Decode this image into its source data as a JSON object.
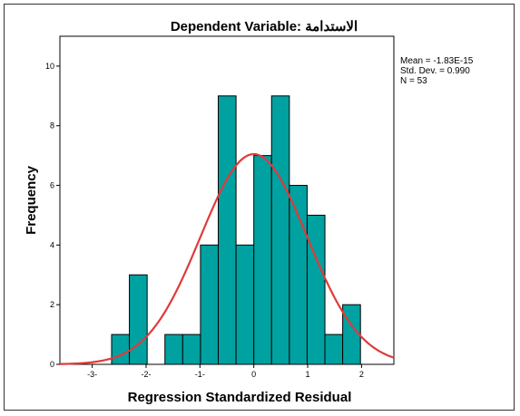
{
  "chart_data": {
    "type": "bar",
    "title": "Dependent Variable: الاستدامة",
    "xlabel": "Regression Standardized Residual",
    "ylabel": "Frequency",
    "xlim": [
      -3.6,
      2.6
    ],
    "ylim": [
      0,
      11
    ],
    "x_ticks": [
      -3,
      -2,
      -1,
      0,
      1,
      2
    ],
    "x_tick_labels": [
      "-3-",
      "-2-",
      "-1-",
      "0",
      "1",
      "2"
    ],
    "y_ticks": [
      0,
      2,
      4,
      6,
      8,
      10
    ],
    "y_tick_labels": [
      "0",
      "2",
      "4",
      "6",
      "8",
      "10"
    ],
    "bin_width": 0.33,
    "bins": [
      {
        "start": -2.64,
        "count": 1
      },
      {
        "start": -2.31,
        "count": 3
      },
      {
        "start": -1.98,
        "count": 0
      },
      {
        "start": -1.65,
        "count": 1
      },
      {
        "start": -1.32,
        "count": 1
      },
      {
        "start": -0.99,
        "count": 4
      },
      {
        "start": -0.66,
        "count": 9
      },
      {
        "start": -0.33,
        "count": 4
      },
      {
        "start": 0.0,
        "count": 7
      },
      {
        "start": 0.33,
        "count": 9
      },
      {
        "start": 0.66,
        "count": 6
      },
      {
        "start": 0.99,
        "count": 5
      },
      {
        "start": 1.32,
        "count": 1
      },
      {
        "start": 1.65,
        "count": 2
      }
    ],
    "normal_curve": {
      "mean": 0,
      "sd": 0.99,
      "n": 53
    },
    "stats": [
      "Mean = -1.83E-15",
      "Std. Dev. = 0.990",
      "N = 53"
    ],
    "bar_color": "#00a1a1",
    "curve_color": "#e03a3a",
    "grid": false
  }
}
